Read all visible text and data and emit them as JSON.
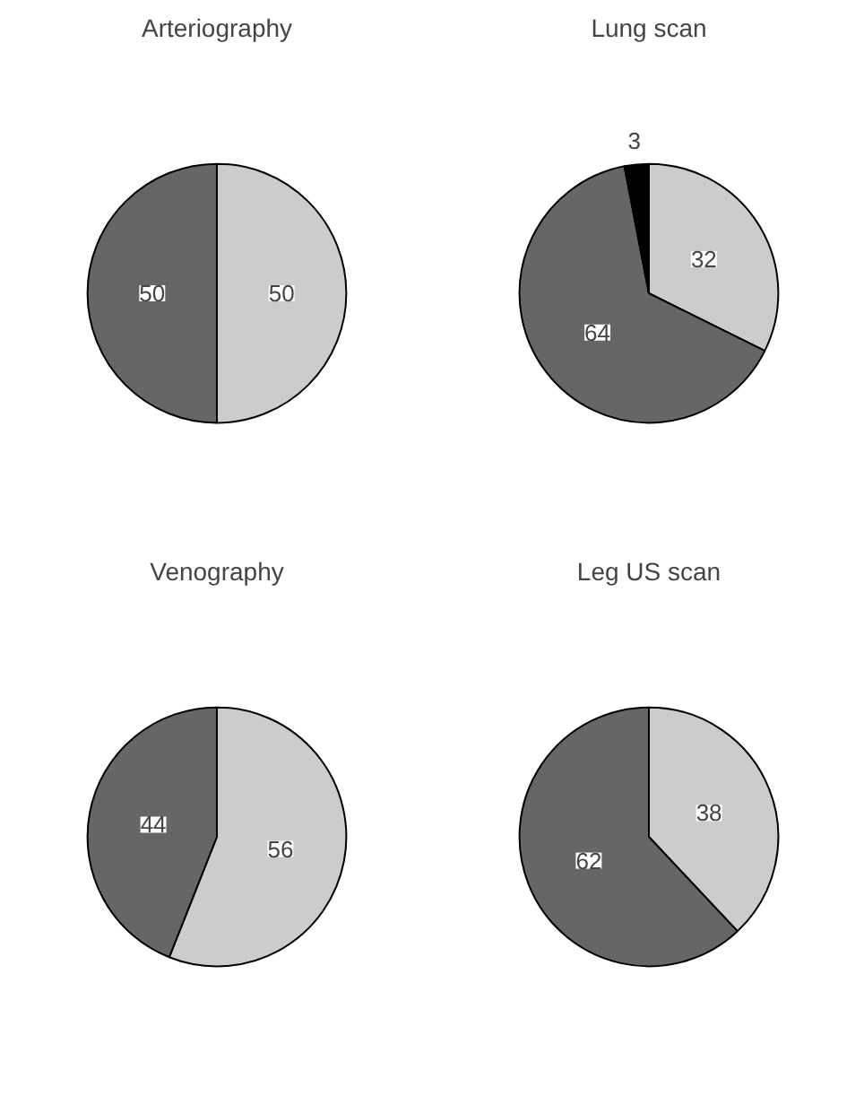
{
  "chart_data": [
    {
      "type": "pie",
      "title": "Arteriography",
      "categories": [
        null,
        null
      ],
      "values": [
        50,
        50
      ],
      "colors": [
        "#cccccc",
        "#666666"
      ],
      "data_labels": true
    },
    {
      "type": "pie",
      "title": "Lung scan",
      "categories": [
        null,
        null,
        null
      ],
      "values": [
        32,
        64,
        3
      ],
      "colors": [
        "#cccccc",
        "#666666",
        "#000000"
      ],
      "data_labels": true
    },
    {
      "type": "pie",
      "title": "Venography",
      "categories": [
        null,
        null
      ],
      "values": [
        56,
        44
      ],
      "colors": [
        "#cccccc",
        "#666666"
      ],
      "data_labels": true
    },
    {
      "type": "pie",
      "title": "Leg US scan",
      "categories": [
        null,
        null
      ],
      "values": [
        38,
        62
      ],
      "colors": [
        "#cccccc",
        "#666666"
      ],
      "data_labels": true
    }
  ]
}
